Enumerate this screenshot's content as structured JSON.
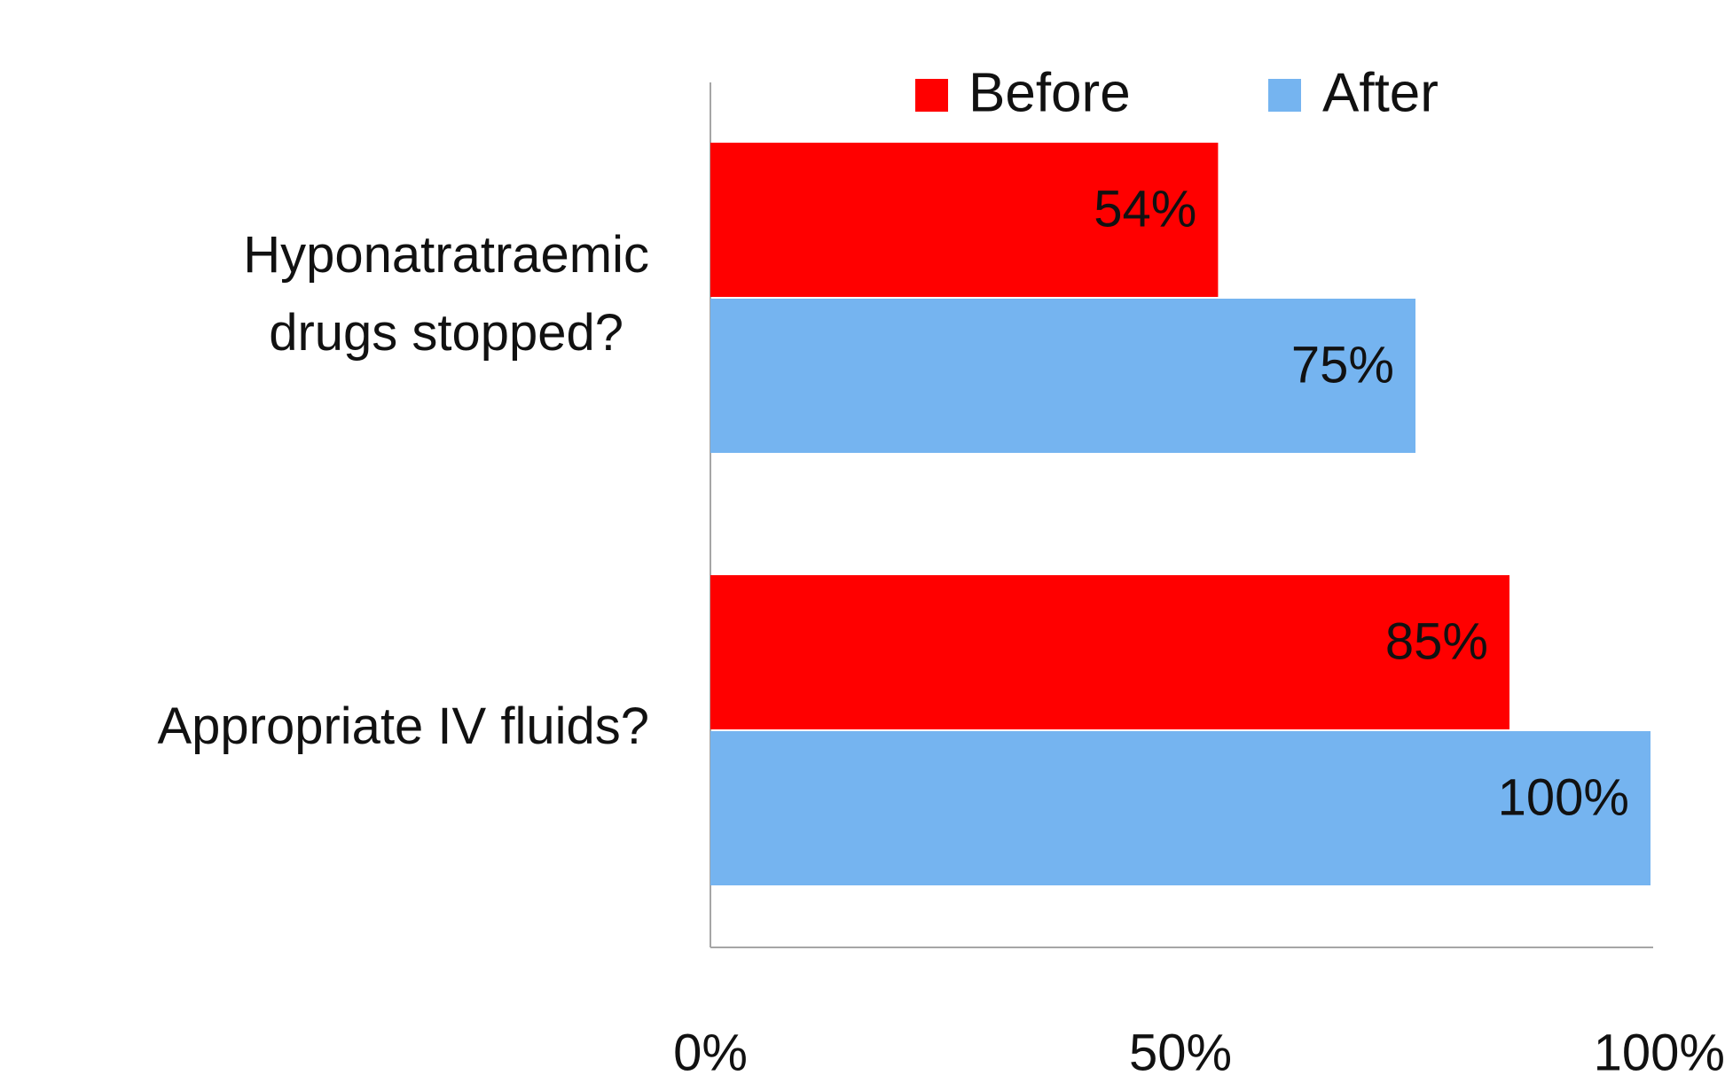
{
  "chart_data": {
    "type": "hbar",
    "categories": [
      "Hyponatratraemic drugs stopped?",
      "Appropriate IV fluids?"
    ],
    "series": [
      {
        "name": "Before",
        "color": "#ff0000",
        "values": [
          54,
          85
        ],
        "value_labels": [
          "54%",
          "85%"
        ]
      },
      {
        "name": "After",
        "color": "#75b4f0",
        "values": [
          75,
          100
        ],
        "value_labels": [
          "75%",
          "100%"
        ]
      }
    ],
    "xlim": [
      0,
      100
    ],
    "xticks": [
      {
        "value": 0,
        "label": "0%"
      },
      {
        "value": 50,
        "label": "50%"
      },
      {
        "value": 100,
        "label": "100%"
      }
    ],
    "legend": "top"
  }
}
